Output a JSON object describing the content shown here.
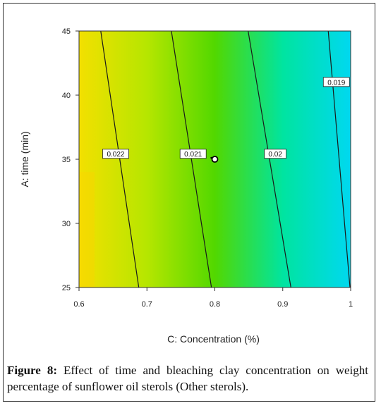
{
  "chart_data": {
    "type": "heatmap",
    "subtype": "contour",
    "xlabel": "C: Concentration (%)",
    "ylabel": "A: time (min)",
    "xlim": [
      0.6,
      1.0
    ],
    "ylim": [
      25,
      45
    ],
    "x_ticks": [
      "0.6",
      "0.7",
      "0.8",
      "0.9",
      "1"
    ],
    "y_ticks": [
      "25",
      "30",
      "35",
      "40",
      "45"
    ],
    "color_scale": [
      "#f3e000",
      "#b6e600",
      "#52d800",
      "#00e4a0",
      "#00d8f0"
    ],
    "contours": [
      {
        "label": "0.022",
        "value": 0.022,
        "x_at_ymax": 0.632,
        "x_at_ymin": 0.688,
        "label_point": [
          0.654,
          35.4
        ]
      },
      {
        "label": "0.021",
        "value": 0.021,
        "x_at_ymax": 0.736,
        "x_at_ymin": 0.795,
        "label_point": [
          0.768,
          35.4
        ]
      },
      {
        "label": "0.02",
        "value": 0.02,
        "x_at_ymax": 0.849,
        "x_at_ymin": 0.912,
        "label_point": [
          0.889,
          35.4
        ]
      },
      {
        "label": "0.019",
        "value": 0.019,
        "x_at_ymax": 0.967,
        "x_at_ymin": 0.999,
        "label_point": [
          0.979,
          41.0
        ]
      }
    ],
    "design_point": {
      "x": 0.8,
      "y": 35
    }
  },
  "caption": {
    "label": "Figure 8:",
    "text": " Effect of time and bleaching clay concentration on weight percentage of sunflower oil sterols (Other sterols)."
  }
}
